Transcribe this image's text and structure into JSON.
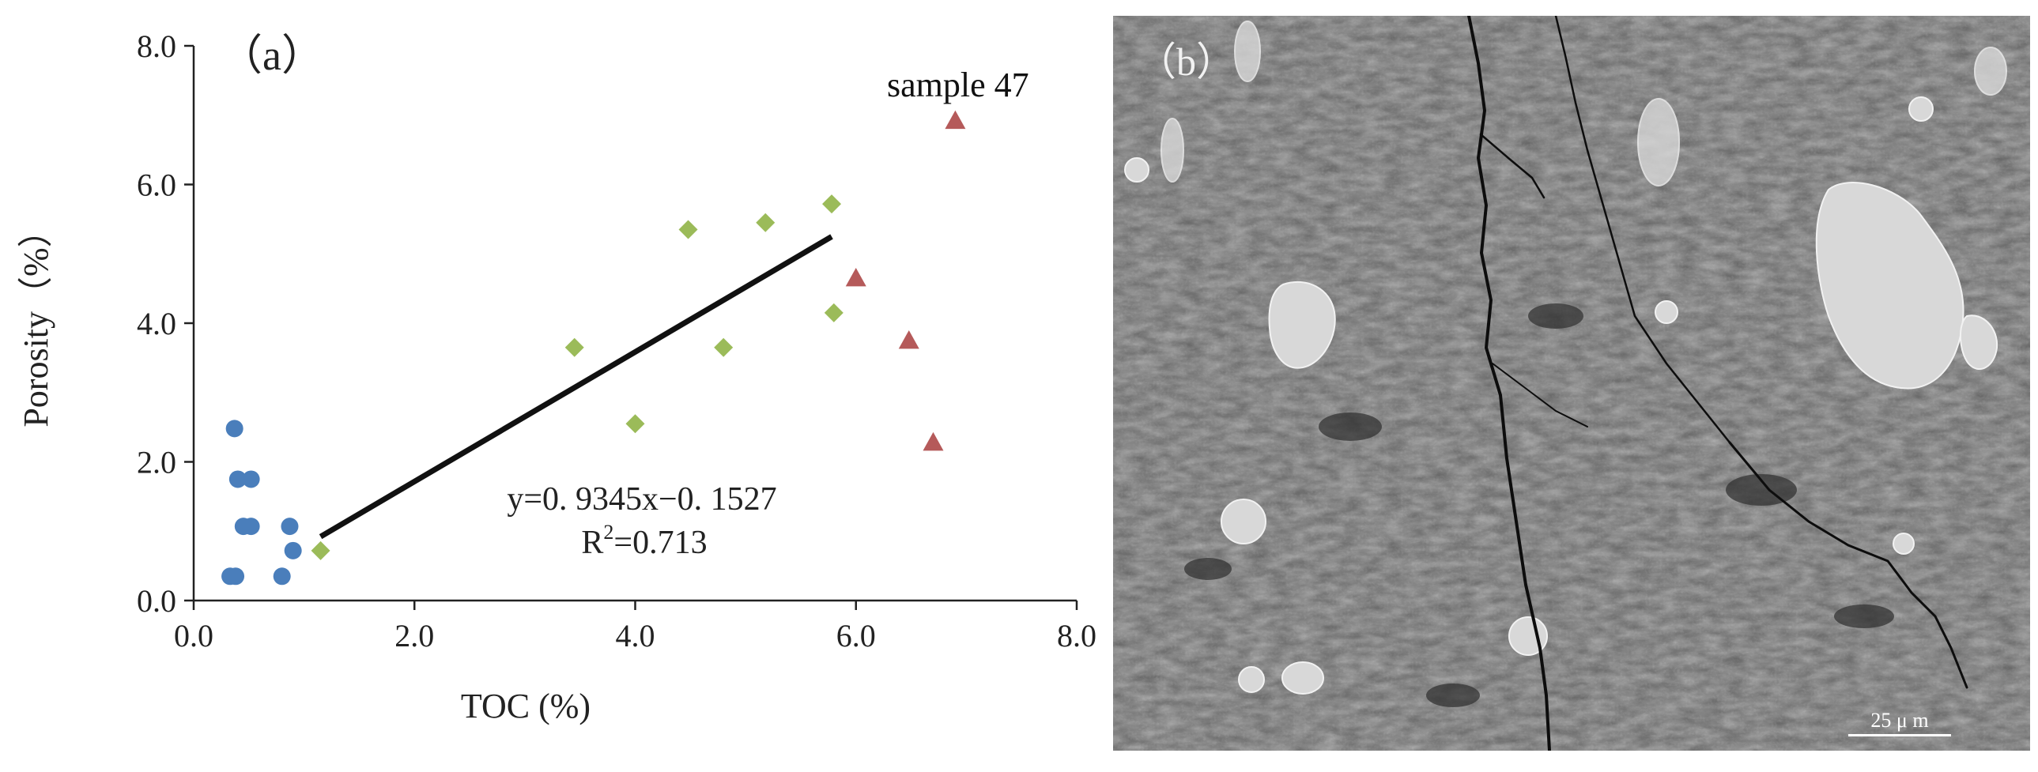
{
  "chart_data": {
    "type": "scatter",
    "panel_label": "（a）",
    "xlabel": "TOC (%)",
    "ylabel": "Porosity（%）",
    "xlim": [
      0,
      8
    ],
    "ylim": [
      0,
      8
    ],
    "x_ticks": [
      "0.0",
      "2.0",
      "4.0",
      "6.0",
      "8.0"
    ],
    "y_ticks": [
      "0.0",
      "2.0",
      "4.0",
      "6.0",
      "8.0"
    ],
    "grid": false,
    "colors": {
      "group1": "#4a7ebb",
      "group2": "#9bbb59",
      "group3": "#b55a5a",
      "fit": "#111111"
    },
    "series": [
      {
        "marker": "circle",
        "color_key": "group1",
        "points": [
          [
            0.33,
            0.35
          ],
          [
            0.38,
            0.35
          ],
          [
            0.37,
            2.48
          ],
          [
            0.4,
            1.75
          ],
          [
            0.52,
            1.75
          ],
          [
            0.45,
            1.07
          ],
          [
            0.52,
            1.07
          ],
          [
            0.87,
            1.07
          ],
          [
            0.8,
            0.35
          ],
          [
            0.9,
            0.72
          ]
        ]
      },
      {
        "marker": "diamond",
        "color_key": "group2",
        "points": [
          [
            1.15,
            0.72
          ],
          [
            3.45,
            3.65
          ],
          [
            4.0,
            2.55
          ],
          [
            4.48,
            5.35
          ],
          [
            4.8,
            3.65
          ],
          [
            5.18,
            5.45
          ],
          [
            5.78,
            5.72
          ],
          [
            5.8,
            4.15
          ]
        ]
      },
      {
        "marker": "triangle",
        "color_key": "group3",
        "points": [
          [
            6.0,
            4.65
          ],
          [
            6.48,
            3.75
          ],
          [
            6.7,
            2.28
          ],
          [
            6.9,
            6.92
          ]
        ]
      }
    ],
    "fit_line": {
      "x_start": 1.15,
      "x_end": 5.78,
      "slope": 0.9345,
      "intercept": -0.1527
    },
    "annotations": {
      "equation": "y=0. 9345x−0. 1527",
      "r2_prefix": "R",
      "r2_sup": "2",
      "r2_value": "=0.713",
      "sample": "sample 47"
    }
  },
  "sem_image": {
    "panel_label": "（b）",
    "scale_bar": "25 μ m"
  }
}
